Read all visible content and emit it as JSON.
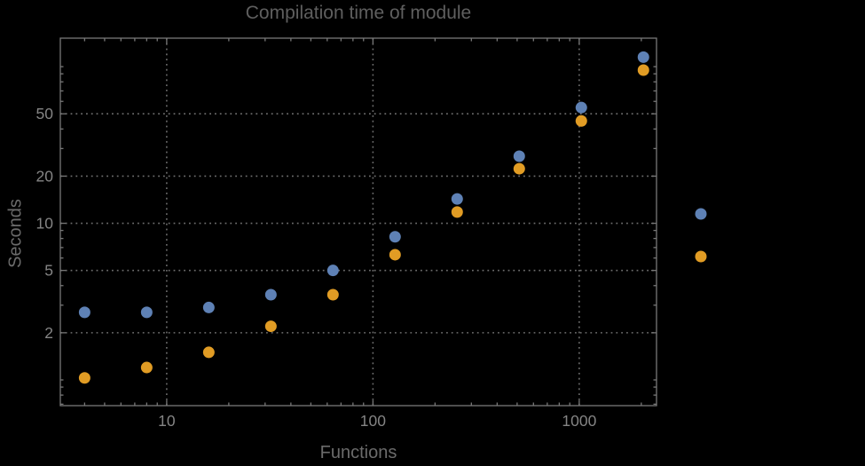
{
  "chart_data": {
    "type": "scatter",
    "title": "Compilation time of module",
    "xlabel": "Functions",
    "ylabel": "Seconds",
    "x_scale": "log",
    "y_scale": "log",
    "xlim": [
      3.05,
      2370
    ],
    "ylim": [
      0.685,
      152
    ],
    "grid": "dotted lines at labeled major ticks only",
    "legend_position": "right-outside, marker dots only, no visible text labels",
    "x_major_ticks": [
      10,
      100,
      1000
    ],
    "x_major_tick_labels": [
      "10",
      "100",
      "1000"
    ],
    "x_minor_ticks": [
      4,
      5,
      6,
      7,
      8,
      9,
      20,
      30,
      40,
      50,
      60,
      70,
      80,
      90,
      200,
      300,
      400,
      500,
      600,
      700,
      800,
      900,
      2000
    ],
    "y_major_ticks": [
      2,
      5,
      10,
      20,
      50
    ],
    "y_major_tick_labels": [
      "2",
      "5",
      "10",
      "20",
      "50"
    ],
    "y_minor_ticks": [
      0.7,
      0.8,
      0.9,
      1,
      3,
      4,
      6,
      7,
      8,
      9,
      30,
      40,
      60,
      70,
      80,
      90,
      100
    ],
    "x": [
      4,
      8,
      16,
      32,
      64,
      128,
      256,
      512,
      1024,
      2048
    ],
    "series": [
      {
        "name": "",
        "color": "#5E81B5",
        "values": [
          2.7,
          2.7,
          2.9,
          3.5,
          5.0,
          8.2,
          14.3,
          26.8,
          54.8,
          115
        ]
      },
      {
        "name": "",
        "color": "#E19C24",
        "values": [
          1.03,
          1.2,
          1.5,
          2.2,
          3.5,
          6.3,
          11.8,
          22.3,
          45,
          95
        ]
      }
    ]
  },
  "colors": {
    "background": "#000000",
    "frame": "#787878",
    "gridline": "#6e6e6e",
    "tick_label": "#848484",
    "title_text": "#5f5f5f",
    "axis_label_text": "#6b6b6b"
  }
}
